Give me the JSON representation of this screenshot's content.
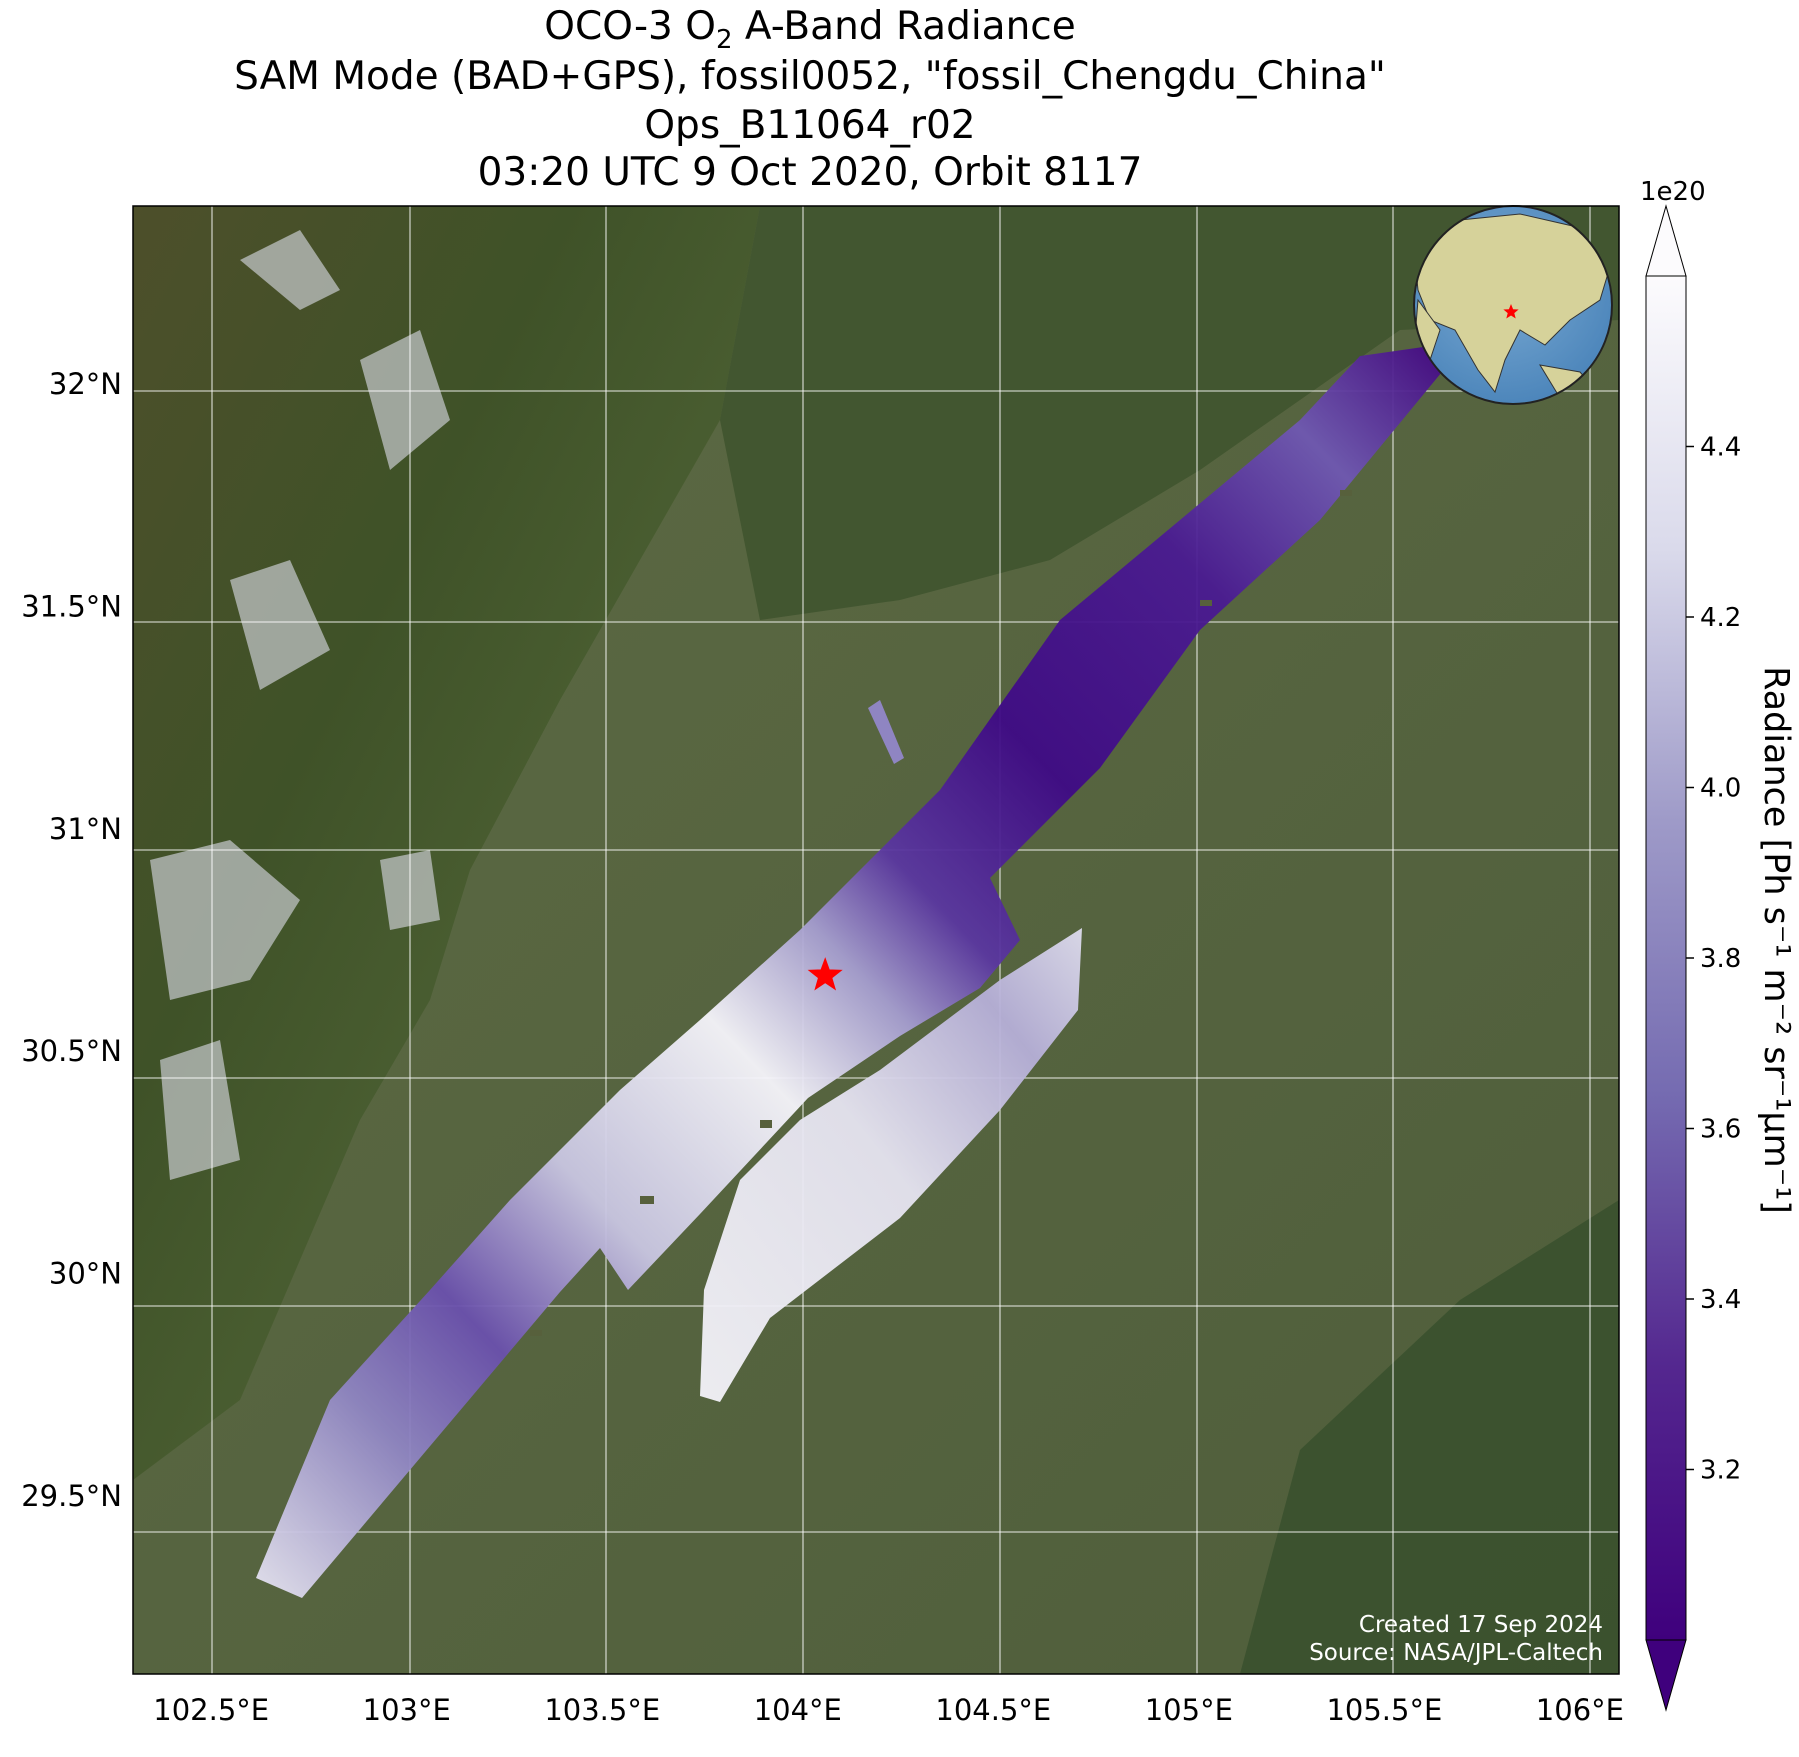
{
  "title": {
    "line1_prefix": "OCO-3 O",
    "line1_sub": "2",
    "line1_suffix": " A-Band Radiance",
    "line2": "SAM Mode (BAD+GPS), fossil0052, \"fossil_Chengdu_China\"",
    "line3": "Ops_B11064_r02",
    "line4": "03:20 UTC 9 Oct 2020, Orbit 8117"
  },
  "map": {
    "lon_ticks": [
      "102.5°E",
      "103°E",
      "103.5°E",
      "104°E",
      "104.5°E",
      "105°E",
      "105.5°E",
      "106°E"
    ],
    "lat_ticks": [
      "32°N",
      "31.5°N",
      "31°N",
      "30.5°N",
      "30°N",
      "29.5°N"
    ],
    "lon_range": [
      102.3,
      106.1
    ],
    "lat_range": [
      29.1,
      32.4
    ],
    "grid": true,
    "target_marker": {
      "lon": 104.07,
      "lat": 30.67,
      "color": "#ff0000"
    },
    "credit_line1": "Created 17 Sep 2024",
    "credit_line2": "Source: NASA/JPL-Caltech"
  },
  "colorbar": {
    "label": "Radiance [Ph s⁻¹ m⁻² sr⁻¹μm⁻¹]",
    "exponent": "1e20",
    "ticks": [
      "4.4",
      "4.2",
      "4.0",
      "3.8",
      "3.6",
      "3.4",
      "3.2"
    ],
    "tick_values": [
      4.4,
      4.2,
      4.0,
      3.8,
      3.6,
      3.4,
      3.2
    ],
    "range": [
      3.0,
      4.6
    ],
    "colormap": "Purples_r",
    "extend": "both"
  },
  "inset_globe": {
    "ocean_color": "#5b93c4",
    "land_color": "#d6d29a",
    "marker_color": "#ff0000"
  }
}
